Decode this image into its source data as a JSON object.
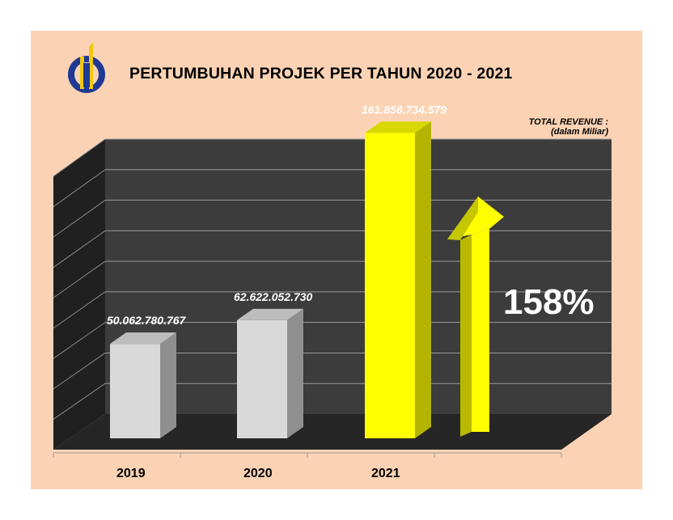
{
  "header": {
    "title": "PERTUMBUHAN PROJEK PER TAHUN 2020 - 2021",
    "note_line1": "TOTAL REVENUE :",
    "note_line2": "(dalam Miliar)"
  },
  "logo": {
    "name": "company-logo",
    "colors": [
      "#1f3a93",
      "#f2c811"
    ]
  },
  "colors": {
    "background": "#fbd3b4",
    "plot_back": "#3a3a3a",
    "plot_floor": "#2a2a2a",
    "bar_default": "#d9d9d9",
    "bar_highlight": "#ffff00",
    "label_text": "#ffffff"
  },
  "chart_data": {
    "type": "bar",
    "categories": [
      "2019",
      "2020",
      "2021"
    ],
    "values": [
      50062780767,
      62622052730,
      161856734579
    ],
    "value_labels": [
      "50.062.780.767",
      "62.622.052.730",
      "161.856.734.579"
    ],
    "highlight_category": "2021",
    "ylim": [
      0,
      180000000000
    ],
    "grid": true,
    "annotation": {
      "text": "158%",
      "arrow": "up"
    }
  }
}
